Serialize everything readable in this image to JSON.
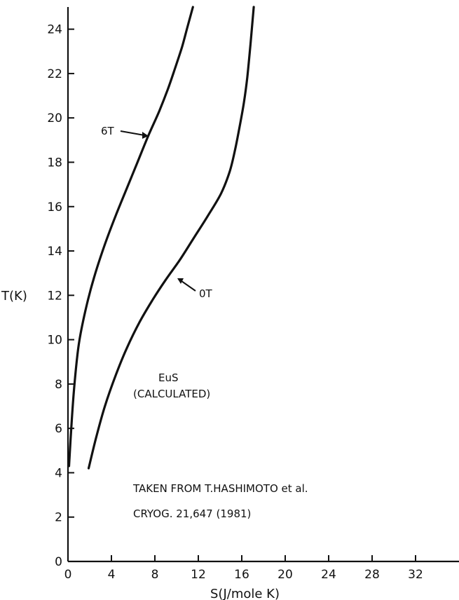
{
  "chart_data": {
    "type": "line",
    "xlabel": "S(J/mole K)",
    "ylabel": "T(K)",
    "xlim": [
      0,
      36
    ],
    "ylim": [
      0,
      25
    ],
    "x_ticks": [
      0,
      4,
      8,
      12,
      16,
      20,
      24,
      28,
      32
    ],
    "x_tick_labels": [
      "0",
      "4",
      "8",
      "12",
      "16",
      "20",
      "24",
      "28",
      "32"
    ],
    "y_ticks": [
      0,
      2,
      4,
      6,
      8,
      10,
      12,
      14,
      16,
      18,
      20,
      22,
      24
    ],
    "y_tick_labels": [
      "0",
      "2",
      "4",
      "6",
      "8",
      "10",
      "12",
      "14",
      "16",
      "18",
      "20",
      "22",
      "24"
    ],
    "series": [
      {
        "name": "6T",
        "x": [
          0.1,
          0.3,
          0.6,
          1.0,
          1.6,
          2.4,
          3.4,
          4.4,
          5.4,
          6.4,
          7.4,
          8.4,
          9.2,
          9.9,
          10.5,
          11.0,
          11.5
        ],
        "y": [
          4.3,
          6.0,
          8.0,
          9.8,
          11.3,
          12.8,
          14.3,
          15.6,
          16.8,
          18.0,
          19.2,
          20.3,
          21.3,
          22.3,
          23.2,
          24.1,
          25.0
        ]
      },
      {
        "name": "0T",
        "x": [
          1.9,
          2.6,
          3.4,
          4.4,
          5.4,
          6.6,
          7.8,
          9.0,
          10.3,
          11.6,
          12.9,
          14.1,
          14.9,
          15.4,
          15.8,
          16.2,
          16.5,
          16.8,
          17.1
        ],
        "y": [
          4.2,
          5.6,
          7.0,
          8.4,
          9.6,
          10.8,
          11.8,
          12.7,
          13.6,
          14.6,
          15.6,
          16.6,
          17.6,
          18.6,
          19.6,
          20.7,
          21.8,
          23.3,
          25.0
        ]
      }
    ],
    "annotations": [
      {
        "text": "6T",
        "series": "6T"
      },
      {
        "text": "0T",
        "series": "0T"
      },
      {
        "text": "EuS"
      },
      {
        "text": "(CALCULATED)"
      },
      {
        "text": "TAKEN FROM T.HASHIMOTO et al."
      },
      {
        "text": "CRYOG. 21,647 (1981)"
      }
    ]
  }
}
